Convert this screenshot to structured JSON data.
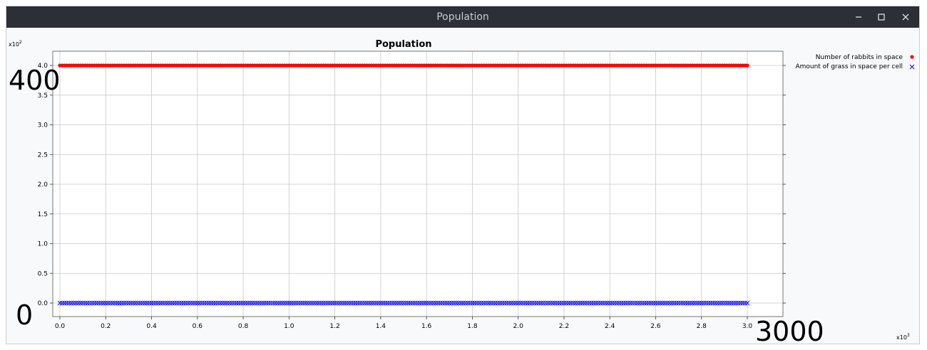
{
  "window": {
    "title": "Population",
    "controls": {
      "minimize_icon": "minimize-icon",
      "maximize_icon": "maximize-icon",
      "close_icon": "close-icon"
    }
  },
  "chart_data": {
    "type": "scatter",
    "title": "Population",
    "x_multiplier_label": "x10",
    "x_multiplier_exp": "3",
    "y_multiplier_label": "x10",
    "y_multiplier_exp": "2",
    "xlim": [
      0,
      3000
    ],
    "ylim": [
      0,
      400
    ],
    "x_ticks": [
      {
        "value": 0,
        "label": "0.0"
      },
      {
        "value": 200,
        "label": "0.2"
      },
      {
        "value": 400,
        "label": "0.4"
      },
      {
        "value": 600,
        "label": "0.6"
      },
      {
        "value": 800,
        "label": "0.8"
      },
      {
        "value": 1000,
        "label": "1.0"
      },
      {
        "value": 1200,
        "label": "1.2"
      },
      {
        "value": 1400,
        "label": "1.4"
      },
      {
        "value": 1600,
        "label": "1.6"
      },
      {
        "value": 1800,
        "label": "1.8"
      },
      {
        "value": 2000,
        "label": "2.0"
      },
      {
        "value": 2200,
        "label": "2.2"
      },
      {
        "value": 2400,
        "label": "2.4"
      },
      {
        "value": 2600,
        "label": "2.6"
      },
      {
        "value": 2800,
        "label": "2.8"
      },
      {
        "value": 3000,
        "label": "3.0"
      }
    ],
    "y_ticks": [
      {
        "value": 0,
        "label": "0.0"
      },
      {
        "value": 50,
        "label": "0.5"
      },
      {
        "value": 100,
        "label": "1.0"
      },
      {
        "value": 150,
        "label": "1.5"
      },
      {
        "value": 200,
        "label": "2.0"
      },
      {
        "value": 250,
        "label": "2.5"
      },
      {
        "value": 300,
        "label": "3.0"
      },
      {
        "value": 350,
        "label": "3.5"
      },
      {
        "value": 400,
        "label": "4.0"
      }
    ],
    "range_labels": {
      "y_max": "400",
      "y_min": "0",
      "x_max": "3000"
    },
    "grid": true,
    "legend_position": "top-right outside",
    "series": [
      {
        "name": "Number of rabbits in space",
        "marker": "circle",
        "color": "#ff0000",
        "x_range": [
          0,
          3000
        ],
        "x_step": 10,
        "y_constant": 400
      },
      {
        "name": "Amount of grass in space per cell",
        "marker": "x",
        "color": "#0000ff",
        "x_range": [
          0,
          3000
        ],
        "x_step": 10,
        "y_constant": 0
      }
    ]
  }
}
